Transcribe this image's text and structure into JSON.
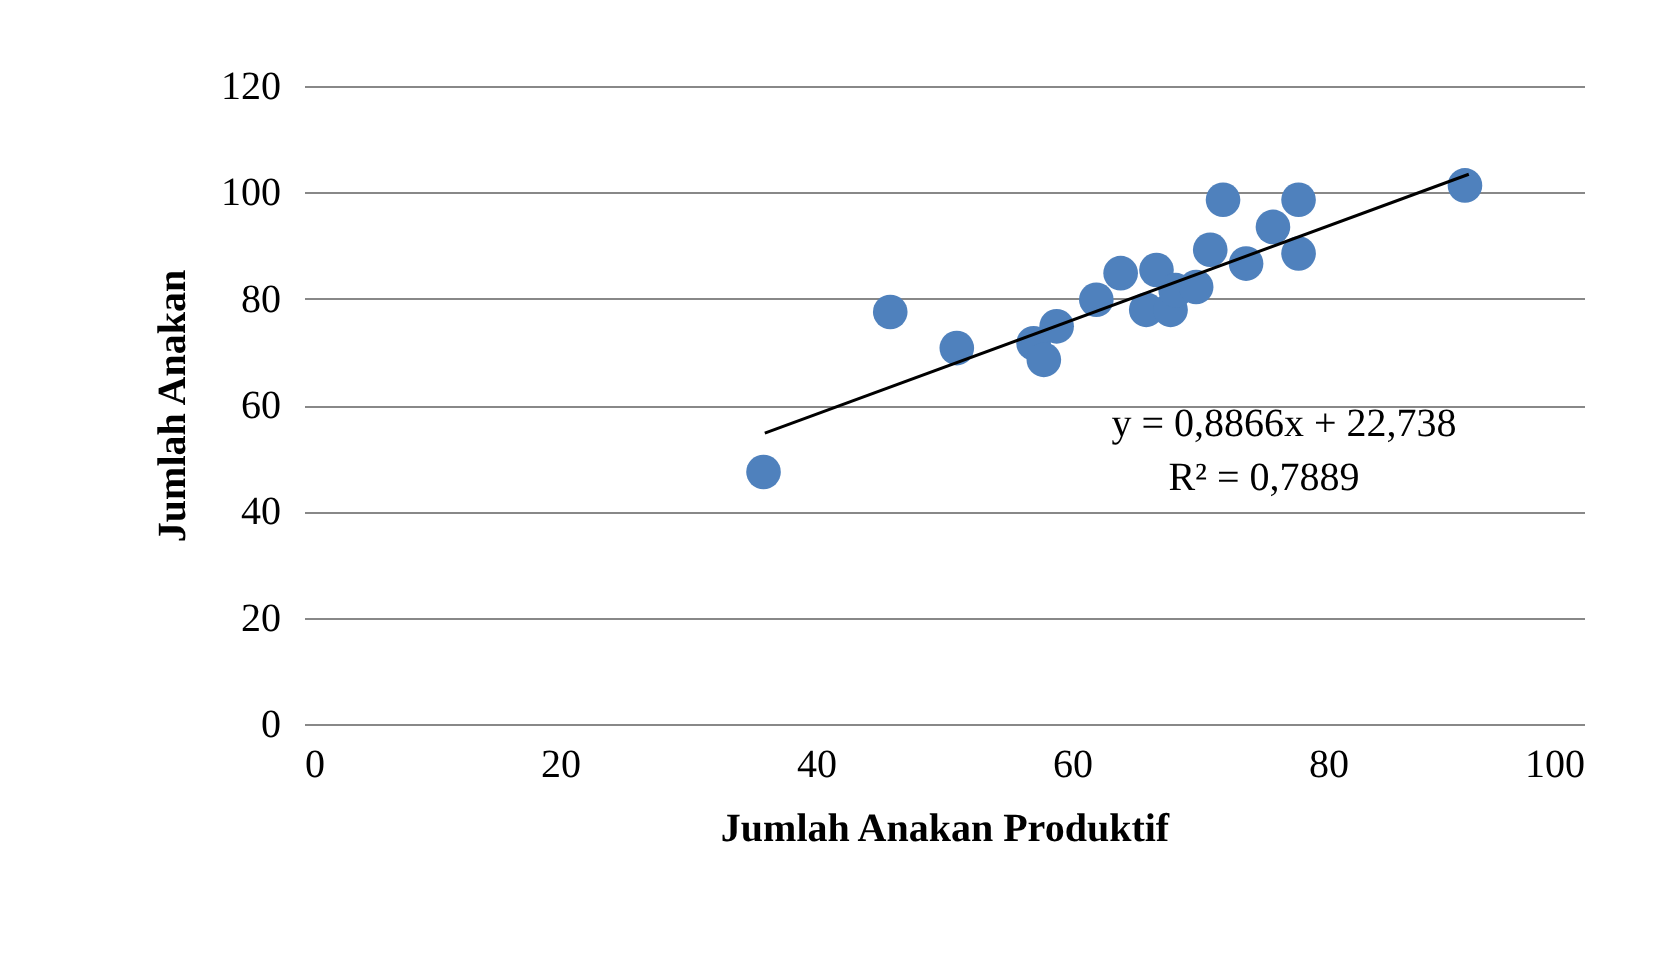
{
  "chart_data": {
    "type": "scatter",
    "xlabel": "Jumlah Anakan Produktif",
    "ylabel": "Jumlah Anakan",
    "x": [
      35.9,
      45.8,
      51,
      57,
      57.8,
      58.8,
      61.9,
      63.8,
      65.8,
      66.6,
      67.7,
      68.1,
      69.7,
      70.8,
      71.8,
      73.6,
      75.7,
      77.7,
      77.7,
      90.7
    ],
    "series": [
      {
        "color": "#4f81bd",
        "marker": "circle",
        "values": [
          47.4,
          77.5,
          70.7,
          71.6,
          68.5,
          74.8,
          79.8,
          84.8,
          77.9,
          85.4,
          77.9,
          81.6,
          82.2,
          89.2,
          98.6,
          86.6,
          93.5,
          98.6,
          88.5,
          101.3
        ]
      },
      {
        "type": "line",
        "color": "#000000",
        "marker": "none",
        "x": [
          36,
          91
        ],
        "values": [
          54.7,
          103.4
        ]
      }
    ],
    "annotations": [
      "y = 0,8866x + 22,738",
      "R² = 0,7889"
    ],
    "xlim": [
      0,
      100
    ],
    "xticks": [
      0,
      20,
      40,
      60,
      80,
      100
    ],
    "ylim": [
      0,
      120
    ],
    "yticks": [
      0,
      20,
      40,
      60,
      80,
      100,
      120
    ],
    "grid": "y",
    "legend": false
  }
}
